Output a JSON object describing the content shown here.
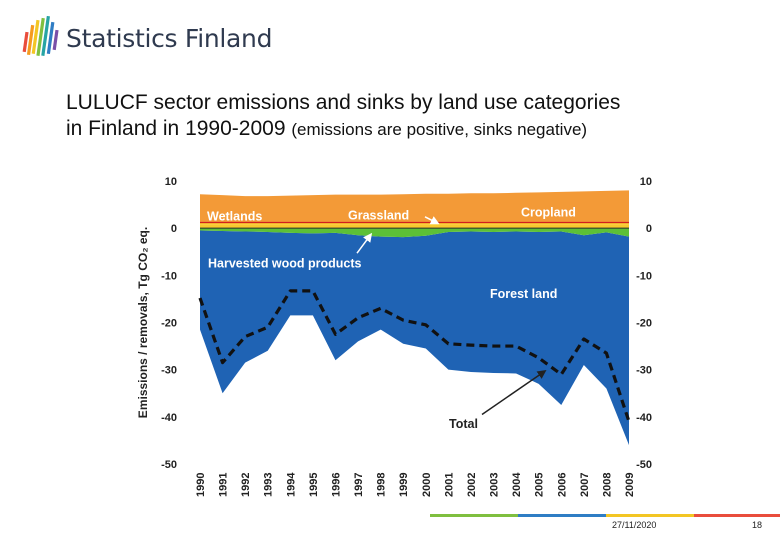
{
  "header": {
    "logo_text": "Statistics Finland",
    "title_line1": "LULUCF sector emissions and sinks by land use categories",
    "title_line2_main": "in Finland in 1990-2009",
    "title_line2_note": "(emissions are positive, sinks negative)"
  },
  "footer": {
    "date": "27/11/2020",
    "page": "18"
  },
  "colors": {
    "forest": "#1f63b4",
    "harvested_wood": "#5cc037",
    "cropland": "#f39a37",
    "wetlands_grassland": "#f7c92e",
    "reference_line": "#d11f1f",
    "total": "#111111",
    "label": "#ffffff"
  },
  "chart_data": {
    "type": "area",
    "ylabel": "Emissions / removals, Tg CO₂ eq.",
    "ylim": [
      -50,
      10
    ],
    "yticks": [
      10,
      0,
      -10,
      -20,
      -30,
      -40,
      -50
    ],
    "x": [
      "1990",
      "1991",
      "1992",
      "1993",
      "1994",
      "1995",
      "1996",
      "1997",
      "1998",
      "1999",
      "2000",
      "2001",
      "2002",
      "2003",
      "2004",
      "2005",
      "2006",
      "2007",
      "2008",
      "2009"
    ],
    "grid": false,
    "series": [
      {
        "name": "Wetlands",
        "values": [
          0.8,
          0.8,
          0.8,
          0.8,
          0.8,
          0.8,
          0.8,
          0.8,
          0.8,
          0.8,
          0.8,
          0.8,
          0.8,
          0.8,
          0.8,
          0.8,
          0.8,
          0.8,
          0.8,
          0.8
        ]
      },
      {
        "name": "Grassland",
        "values": [
          0.4,
          0.4,
          0.4,
          0.4,
          0.4,
          0.4,
          0.4,
          0.4,
          0.4,
          0.4,
          0.4,
          0.4,
          0.4,
          0.4,
          0.4,
          0.4,
          0.4,
          0.4,
          0.4,
          0.4
        ]
      },
      {
        "name": "Cropland",
        "values": [
          6.0,
          5.8,
          5.6,
          5.6,
          5.7,
          5.8,
          5.9,
          5.9,
          5.9,
          6.0,
          6.1,
          6.1,
          6.2,
          6.2,
          6.3,
          6.4,
          6.5,
          6.6,
          6.7,
          6.8
        ]
      },
      {
        "name": "Harvested wood products",
        "values": [
          -0.5,
          -0.6,
          -0.7,
          -0.8,
          -1.0,
          -1.1,
          -1.0,
          -1.5,
          -1.8,
          -1.9,
          -1.6,
          -0.8,
          -0.7,
          -0.8,
          -0.7,
          -0.8,
          -0.7,
          -1.5,
          -0.9,
          -1.8
        ]
      },
      {
        "name": "Forest land",
        "values": [
          -21.5,
          -35,
          -28.5,
          -26,
          -18.5,
          -18.5,
          -28.0,
          -24,
          -21.5,
          -24.5,
          -25.5,
          -30,
          -30.5,
          -30.7,
          -30.8,
          -33,
          -37.5,
          -29,
          -34,
          -46
        ]
      },
      {
        "name": "Total",
        "values": [
          -14.8,
          -28.5,
          -23,
          -21,
          -13.3,
          -13.3,
          -22.5,
          -19,
          -17,
          -19.5,
          -20.5,
          -24.5,
          -24.8,
          -25,
          -25,
          -27.5,
          -31,
          -23.5,
          -26.5,
          -41
        ]
      }
    ],
    "annotations": [
      "Wetlands",
      "Grassland",
      "Cropland",
      "Harvested  wood products",
      "Forest land",
      "Total"
    ]
  }
}
